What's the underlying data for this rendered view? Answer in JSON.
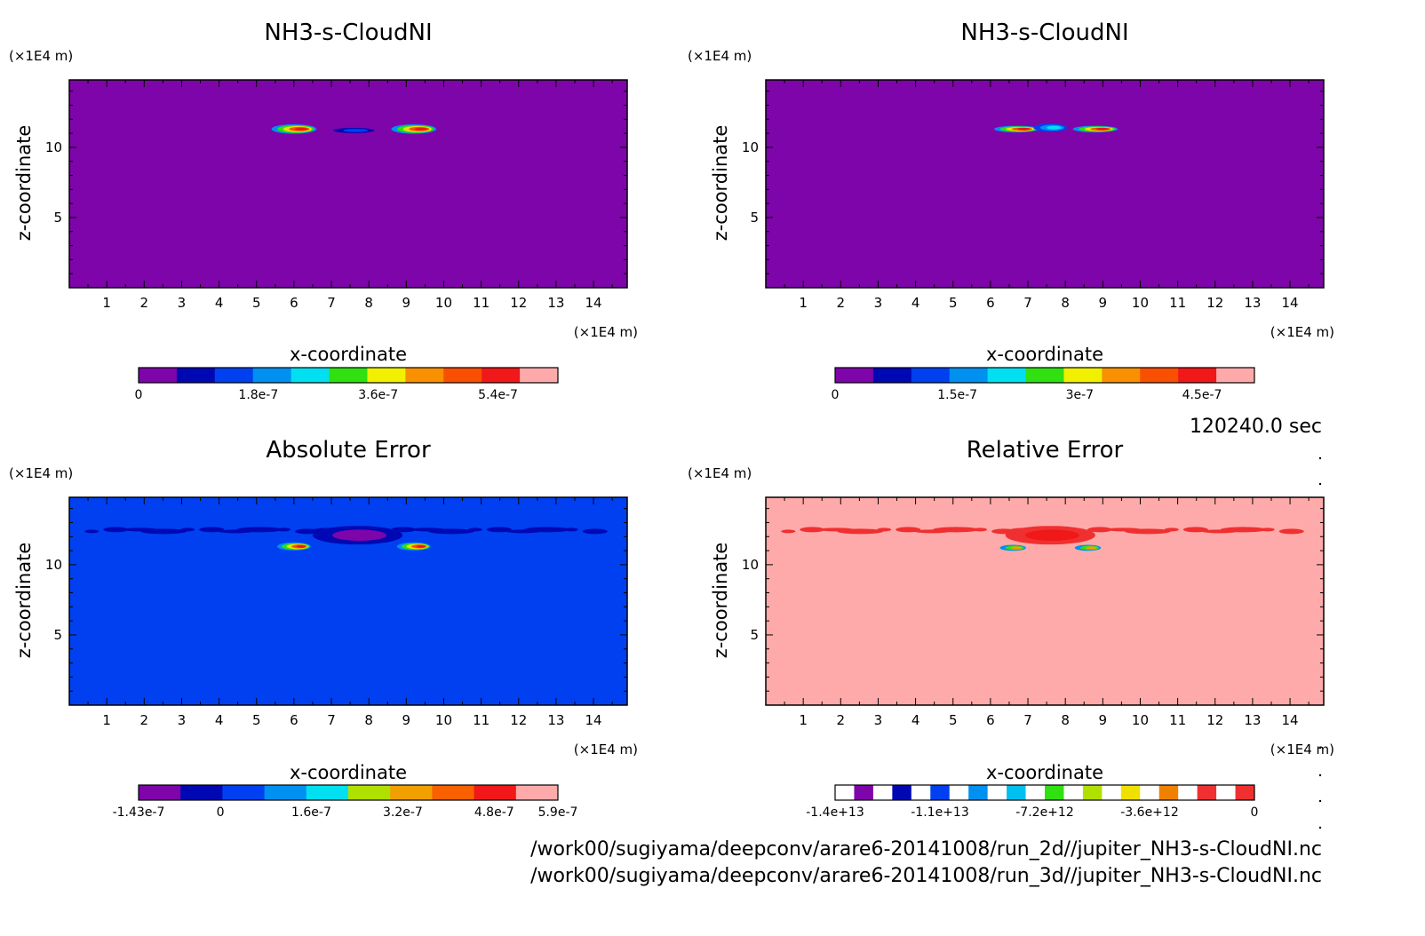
{
  "time_label": "120240.0 sec",
  "file_paths": [
    "/work00/sugiyama/deepconv/arare6-20141008/run_2d//jupiter_NH3-s-CloudNI.nc",
    "/work00/sugiyama/deepconv/arare6-20141008/run_3d//jupiter_NH3-s-CloudNI.nc"
  ],
  "axis_unit": "(×1E4 m)",
  "chart_data": [
    {
      "type": "heatmap",
      "title": "NH3-s-CloudNI",
      "xlabel": "x-coordinate",
      "ylabel": "z-coordinate",
      "x_unit": "(×1E4 m)",
      "y_unit": "(×1E4 m)",
      "xticks": [
        "1",
        "2",
        "3",
        "4",
        "5",
        "6",
        "7",
        "8",
        "9",
        "10",
        "11",
        "12",
        "13",
        "14"
      ],
      "yticks": [
        "5",
        "10"
      ],
      "background_color": "#7e05a9",
      "features": [
        {
          "x": 6.0,
          "z": 11.3,
          "w": 1.2,
          "h": 0.55,
          "level": "peak"
        },
        {
          "x": 7.6,
          "z": 11.2,
          "w": 1.1,
          "h": 0.25,
          "level": "low"
        },
        {
          "x": 9.2,
          "z": 11.3,
          "w": 1.2,
          "h": 0.55,
          "level": "peak"
        }
      ],
      "colorbar": {
        "colors": [
          "#7e05a9",
          "#0008b4",
          "#0040f0",
          "#0090f0",
          "#00e0f0",
          "#30e010",
          "#f0f000",
          "#f89000",
          "#f85000",
          "#f01818",
          "#ffaaaa"
        ],
        "labels": [
          "0",
          "1.8e-7",
          "3.6e-7",
          "5.4e-7"
        ],
        "label_pos": [
          0.0,
          0.2857,
          0.5714,
          0.8571
        ]
      }
    },
    {
      "type": "heatmap",
      "title": "NH3-s-CloudNI",
      "xlabel": "x-coordinate",
      "ylabel": "z-coordinate",
      "x_unit": "(×1E4 m)",
      "y_unit": "(×1E4 m)",
      "xticks": [
        "1",
        "2",
        "3",
        "4",
        "5",
        "6",
        "7",
        "8",
        "9",
        "10",
        "11",
        "12",
        "13",
        "14"
      ],
      "yticks": [
        "5",
        "10"
      ],
      "background_color": "#7e05a9",
      "features": [
        {
          "x": 6.7,
          "z": 11.3,
          "w": 1.2,
          "h": 0.35,
          "level": "peak"
        },
        {
          "x": 7.6,
          "z": 11.4,
          "w": 0.9,
          "h": 0.45,
          "level": "mid"
        },
        {
          "x": 8.8,
          "z": 11.3,
          "w": 1.2,
          "h": 0.35,
          "level": "peak"
        }
      ],
      "colorbar": {
        "colors": [
          "#7e05a9",
          "#0008b4",
          "#0040f0",
          "#0090f0",
          "#00e0f0",
          "#30e010",
          "#f0f000",
          "#f89000",
          "#f85000",
          "#f01818",
          "#ffaaaa"
        ],
        "labels": [
          "0",
          "1.5e-7",
          "3e-7",
          "4.5e-7"
        ],
        "label_pos": [
          0.0,
          0.2917,
          0.5833,
          0.875
        ]
      }
    },
    {
      "type": "heatmap",
      "title": "Absolute Error",
      "xlabel": "x-coordinate",
      "ylabel": "z-coordinate",
      "x_unit": "(×1E4 m)",
      "y_unit": "(×1E4 m)",
      "xticks": [
        "1",
        "2",
        "3",
        "4",
        "5",
        "6",
        "7",
        "8",
        "9",
        "10",
        "11",
        "12",
        "13",
        "14"
      ],
      "yticks": [
        "5",
        "10"
      ],
      "background_color": "#0040f0",
      "band_color": "#0008b4",
      "band_z": 12.5,
      "features": [
        {
          "x": 6.0,
          "z": 11.3,
          "w": 0.9,
          "h": 0.45,
          "level": "peak"
        },
        {
          "x": 7.7,
          "z": 12.1,
          "w": 2.4,
          "h": 1.2,
          "level": "neg"
        },
        {
          "x": 9.2,
          "z": 11.3,
          "w": 0.9,
          "h": 0.45,
          "level": "peak"
        }
      ],
      "colorbar": {
        "colors": [
          "#7e05a9",
          "#0008b4",
          "#0040f0",
          "#0090f0",
          "#00e0f0",
          "#b0e000",
          "#f0a000",
          "#f86000",
          "#f01818",
          "#ffaaaa"
        ],
        "labels": [
          "-1.43e-7",
          "0",
          "1.6e-7",
          "3.2e-7",
          "4.8e-7",
          "5.9e-7"
        ],
        "label_pos": [
          0.0,
          0.195,
          0.412,
          0.63,
          0.848,
          1.0
        ]
      }
    },
    {
      "type": "heatmap",
      "title": "Relative Error",
      "xlabel": "x-coordinate",
      "ylabel": "z-coordinate",
      "x_unit": "(×1E4 m)",
      "y_unit": "(×1E4 m)",
      "xticks": [
        "1",
        "2",
        "3",
        "4",
        "5",
        "6",
        "7",
        "8",
        "9",
        "10",
        "11",
        "12",
        "13",
        "14"
      ],
      "yticks": [
        "5",
        "10"
      ],
      "background_color": "#ffaaaa",
      "band_color": "#f03030",
      "band_z": 12.5,
      "features": [
        {
          "x": 7.6,
          "z": 12.1,
          "w": 2.4,
          "h": 1.2,
          "level": "red"
        },
        {
          "x": 6.6,
          "z": 11.2,
          "w": 0.7,
          "h": 0.3,
          "level": "blue"
        },
        {
          "x": 8.6,
          "z": 11.2,
          "w": 0.7,
          "h": 0.3,
          "level": "blue"
        }
      ],
      "colorbar": {
        "colors": [
          "#ffffff",
          "#7e05a9",
          "#ffffff",
          "#0008b4",
          "#ffffff",
          "#0040f0",
          "#ffffff",
          "#0090f0",
          "#ffffff",
          "#00c0f0",
          "#ffffff",
          "#30e010",
          "#ffffff",
          "#b0e000",
          "#ffffff",
          "#f0e000",
          "#ffffff",
          "#f08000",
          "#ffffff",
          "#f03030",
          "#ffffff",
          "#f03030"
        ],
        "labels": [
          "-1.4e+13",
          "-1.1e+13",
          "-7.2e+12",
          "-3.6e+12",
          "0"
        ],
        "label_pos": [
          0.0,
          0.25,
          0.5,
          0.75,
          1.0
        ]
      }
    }
  ]
}
